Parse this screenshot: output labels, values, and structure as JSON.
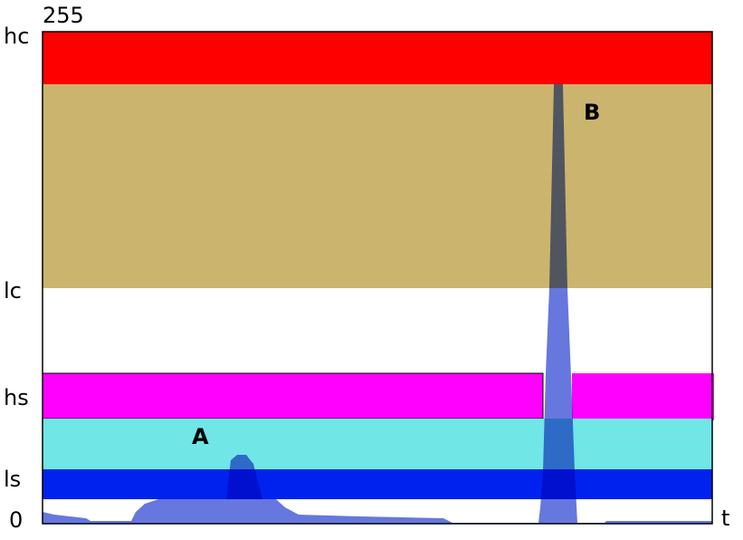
{
  "top_label": "255",
  "levels": [
    "hc",
    "lc",
    "hs",
    "ls"
  ],
  "origin_label": "0",
  "x_label": "t",
  "annotations": [
    "A",
    "B"
  ]
}
